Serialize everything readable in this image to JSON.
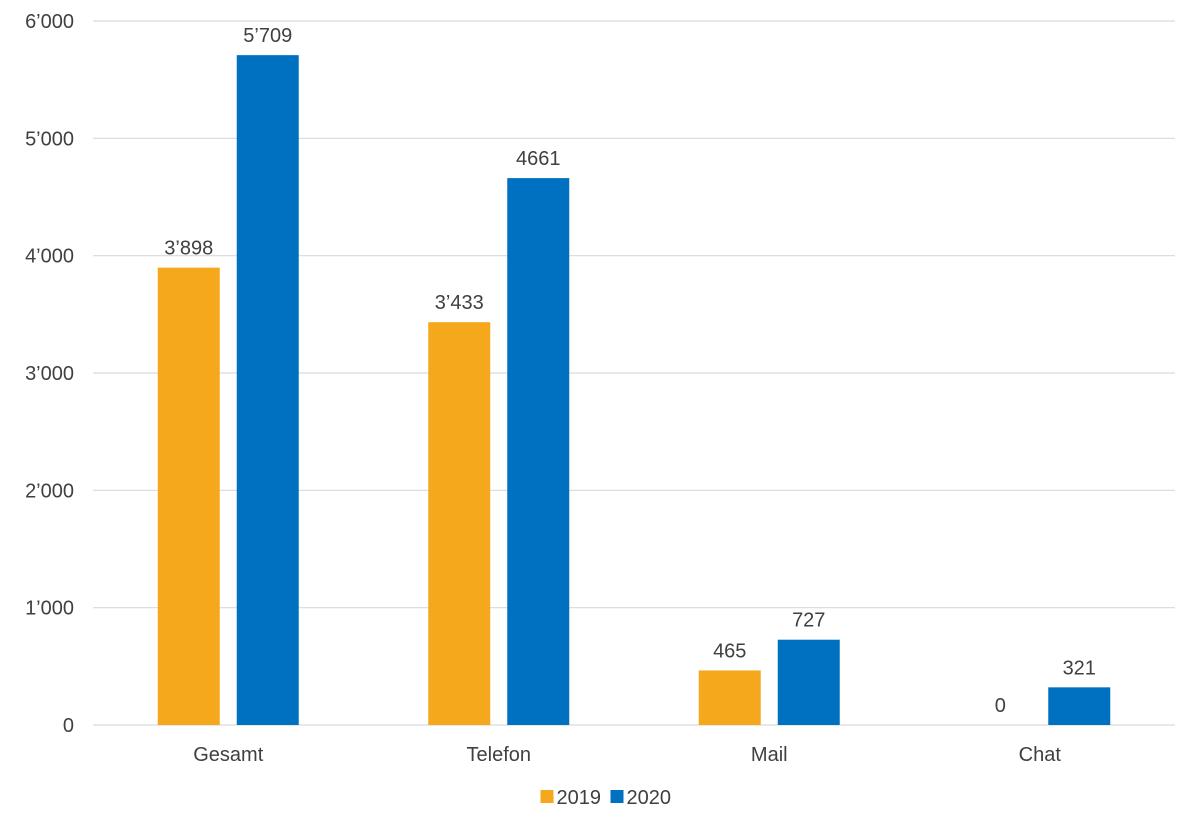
{
  "chart_data": {
    "type": "bar",
    "categories": [
      "Gesamt",
      "Telefon",
      "Mail",
      "Chat"
    ],
    "series": [
      {
        "name": "2019",
        "color": "#F5A81C",
        "values": [
          3898,
          3433,
          465,
          0
        ],
        "labels": [
          "3’898",
          "3’433",
          "465",
          "0"
        ]
      },
      {
        "name": "2020",
        "color": "#0070C0",
        "values": [
          5709,
          4661,
          727,
          321
        ],
        "labels": [
          "5’709",
          "4661",
          "727",
          "321"
        ]
      }
    ],
    "ylim": [
      0,
      6000
    ],
    "yticks": [
      0,
      1000,
      2000,
      3000,
      4000,
      5000,
      6000
    ],
    "ytick_labels": [
      "0",
      "1’000",
      "2’000",
      "3’000",
      "4’000",
      "5’000",
      "6’000"
    ],
    "grid": true,
    "gridline_color": "#D9D9D9",
    "legend_position": "bottom",
    "title": "",
    "xlabel": "",
    "ylabel": ""
  }
}
